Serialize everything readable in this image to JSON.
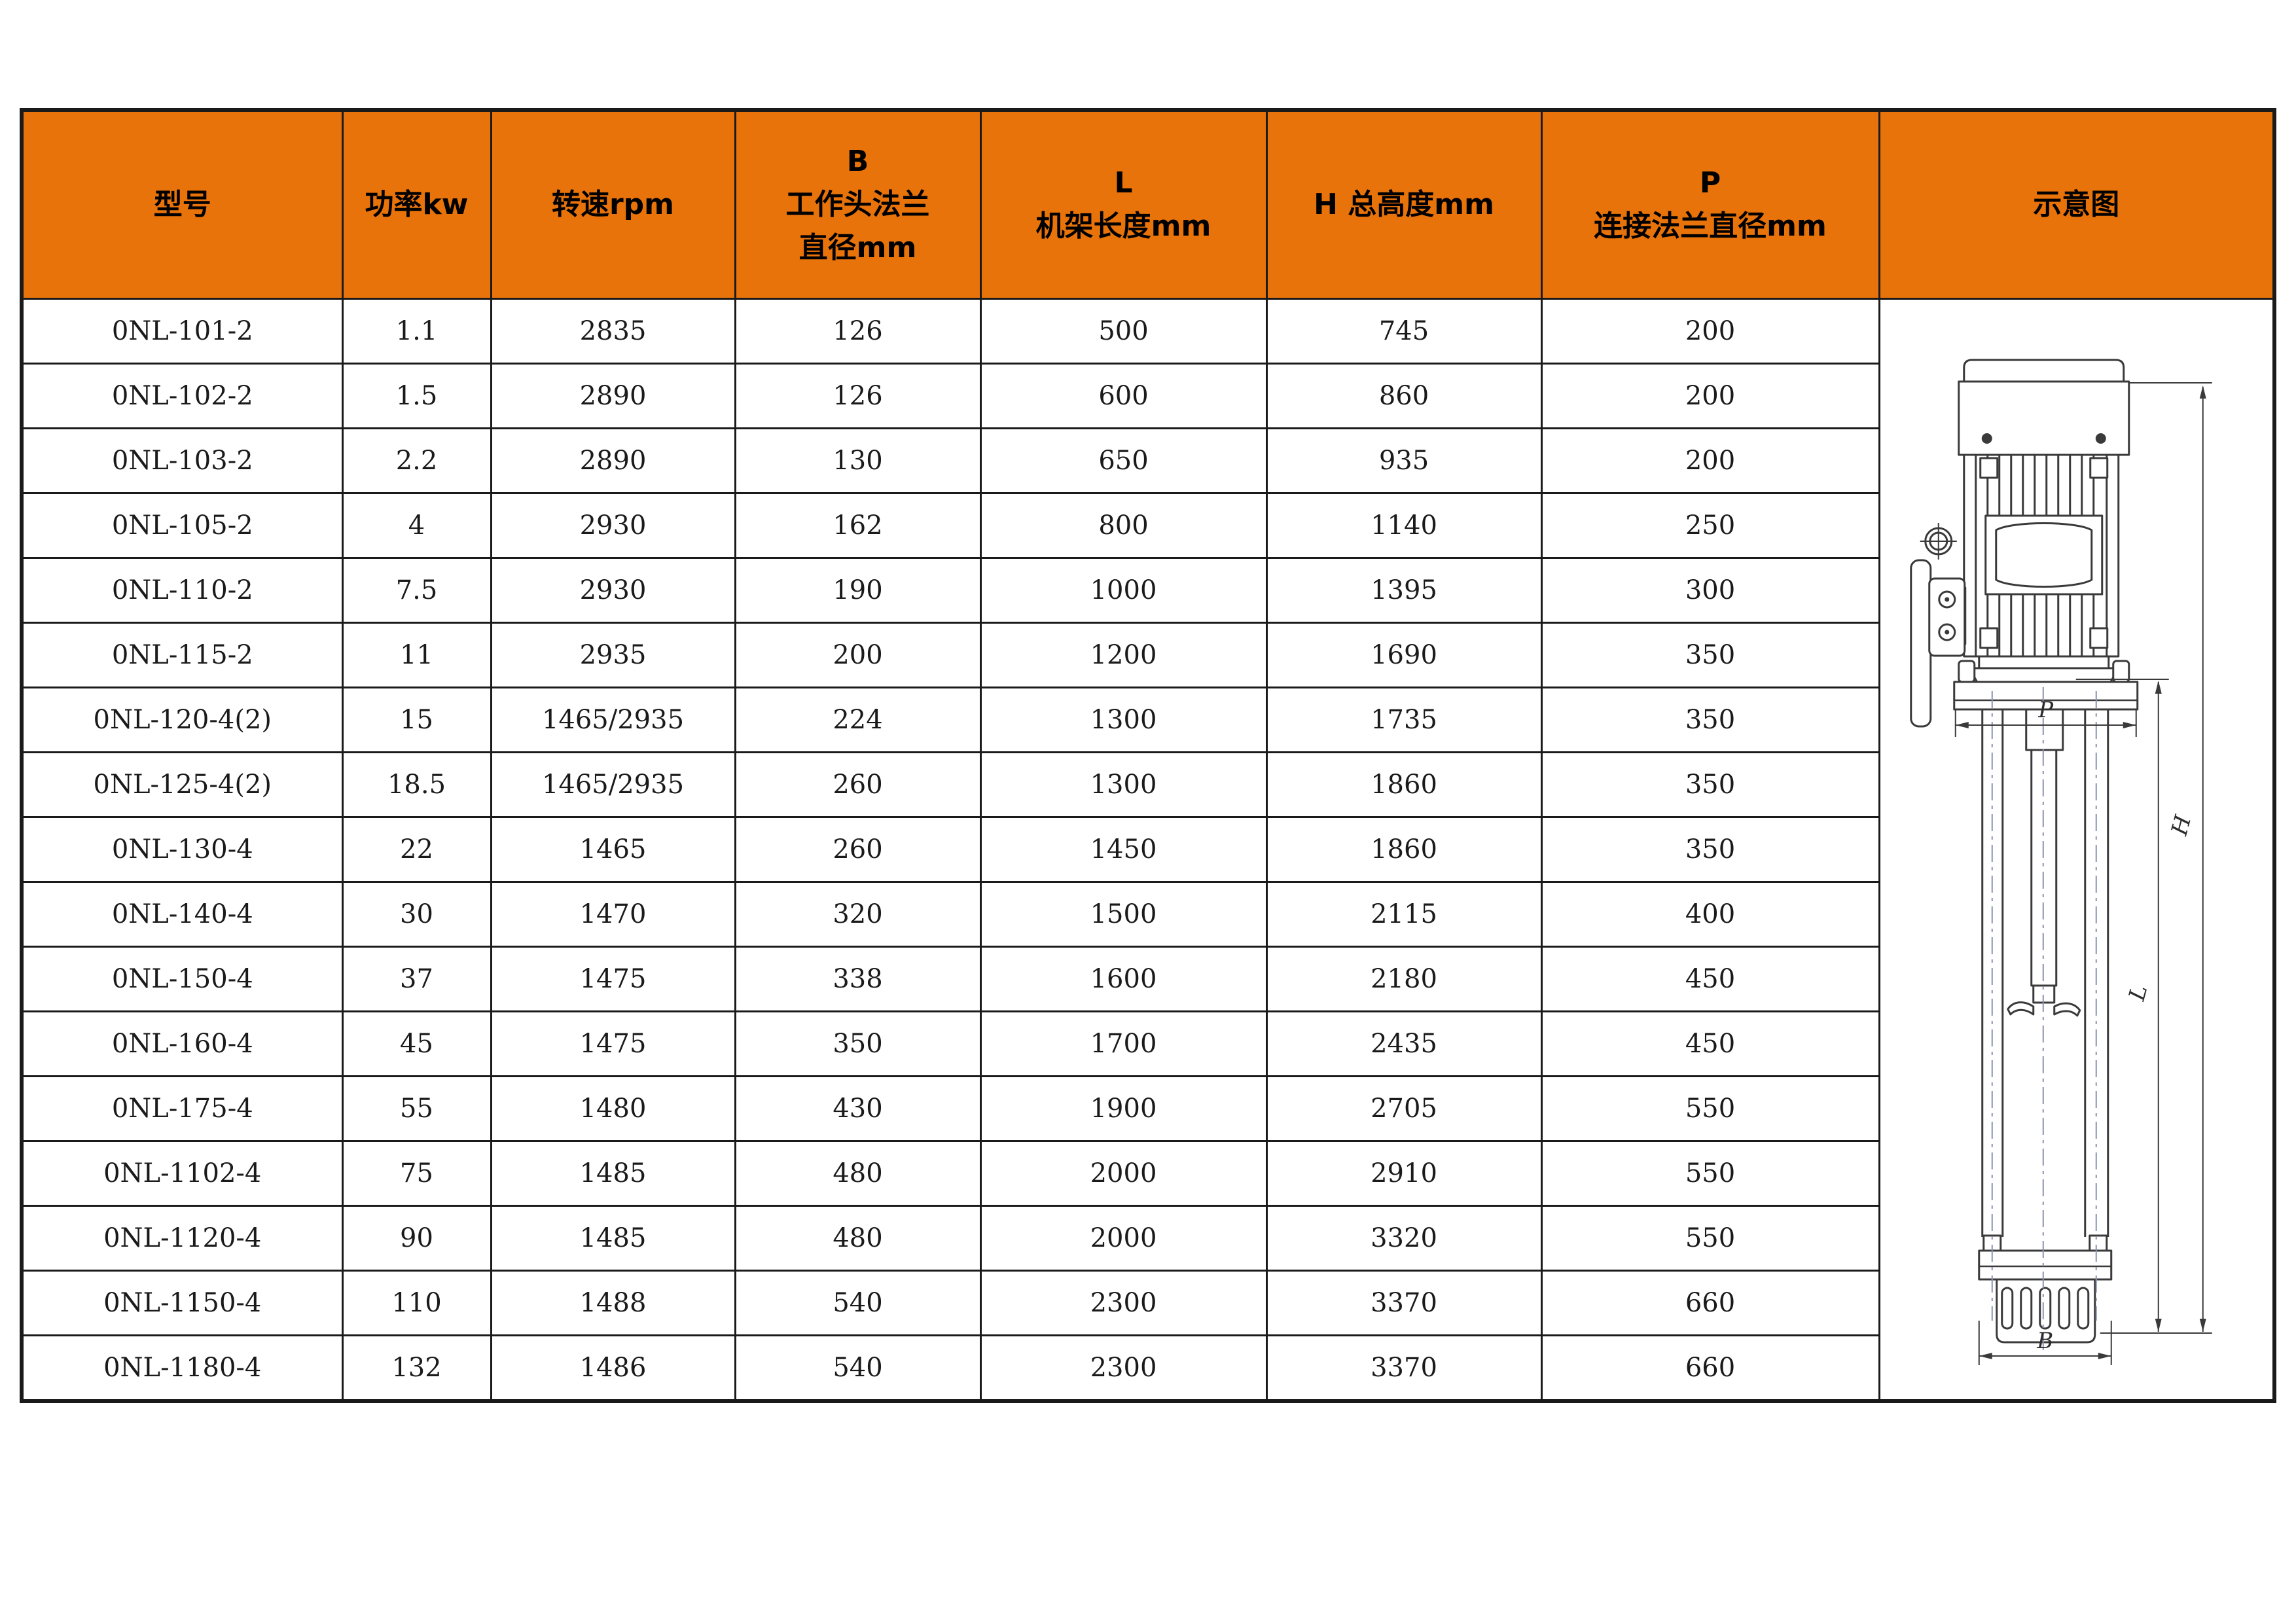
{
  "page": {
    "background": "#ffffff"
  },
  "colors": {
    "header_bg": "#e8730a",
    "grid_line": "#1a1a1a",
    "text": "#000000",
    "drawing_line": "#3a3a3a",
    "centerline": "#8b94ae"
  },
  "header": {
    "columns": [
      {
        "id": "model",
        "lines": [
          "型号"
        ]
      },
      {
        "id": "power",
        "lines": [
          "功率kw"
        ]
      },
      {
        "id": "speed",
        "lines": [
          "转速rpm"
        ]
      },
      {
        "id": "b-flange",
        "lines": [
          "B",
          "工作头法兰",
          "直径mm"
        ]
      },
      {
        "id": "frame-length",
        "lines": [
          "L",
          "机架长度mm"
        ]
      },
      {
        "id": "total-height",
        "lines": [
          "H 总高度mm"
        ]
      },
      {
        "id": "connect-flange",
        "lines": [
          "P",
          "连接法兰直径mm"
        ]
      },
      {
        "id": "schematic",
        "lines": [
          "示意图"
        ]
      }
    ]
  },
  "rows": [
    [
      "0NL-101-2",
      "1.1",
      "2835",
      "126",
      "500",
      "745",
      "200"
    ],
    [
      "0NL-102-2",
      "1.5",
      "2890",
      "126",
      "600",
      "860",
      "200"
    ],
    [
      "0NL-103-2",
      "2.2",
      "2890",
      "130",
      "650",
      "935",
      "200"
    ],
    [
      "0NL-105-2",
      "4",
      "2930",
      "162",
      "800",
      "1140",
      "250"
    ],
    [
      "0NL-110-2",
      "7.5",
      "2930",
      "190",
      "1000",
      "1395",
      "300"
    ],
    [
      "0NL-115-2",
      "11",
      "2935",
      "200",
      "1200",
      "1690",
      "350"
    ],
    [
      "0NL-120-4(2)",
      "15",
      "1465/2935",
      "224",
      "1300",
      "1735",
      "350"
    ],
    [
      "0NL-125-4(2)",
      "18.5",
      "1465/2935",
      "260",
      "1300",
      "1860",
      "350"
    ],
    [
      "0NL-130-4",
      "22",
      "1465",
      "260",
      "1450",
      "1860",
      "350"
    ],
    [
      "0NL-140-4",
      "30",
      "1470",
      "320",
      "1500",
      "2115",
      "400"
    ],
    [
      "0NL-150-4",
      "37",
      "1475",
      "338",
      "1600",
      "2180",
      "450"
    ],
    [
      "0NL-160-4",
      "45",
      "1475",
      "350",
      "1700",
      "2435",
      "450"
    ],
    [
      "0NL-175-4",
      "55",
      "1480",
      "430",
      "1900",
      "2705",
      "550"
    ],
    [
      "0NL-1102-4",
      "75",
      "1485",
      "480",
      "2000",
      "2910",
      "550"
    ],
    [
      "0NL-1120-4",
      "90",
      "1485",
      "480",
      "2000",
      "3320",
      "550"
    ],
    [
      "0NL-1150-4",
      "110",
      "1488",
      "540",
      "2300",
      "3370",
      "660"
    ],
    [
      "0NL-1180-4",
      "132",
      "1486",
      "540",
      "2300",
      "3370",
      "660"
    ]
  ],
  "diagram": {
    "dim_h": "H",
    "dim_l": "L",
    "dim_p": "P",
    "dim_b": "B"
  }
}
